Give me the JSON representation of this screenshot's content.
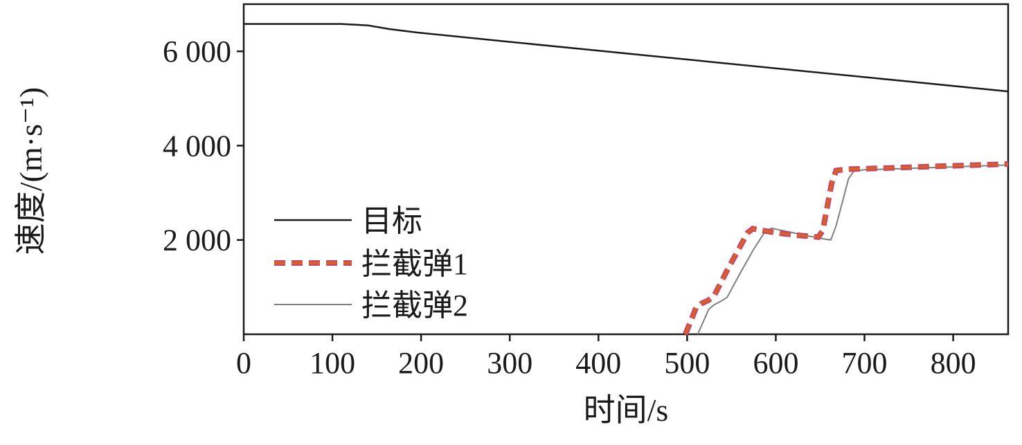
{
  "figure": {
    "kind": "scientific-line-plot",
    "background": "#ffffff",
    "axis_color": "#1a1a1a"
  },
  "chart_data": {
    "type": "line",
    "title": "",
    "xlabel": "时间/s",
    "ylabel": "速度/(m·s⁻¹)",
    "xlim": [
      0,
      862
    ],
    "ylim": [
      0,
      7000
    ],
    "grid": false,
    "legend_position": "inside-left-bottom",
    "xticks": [
      0,
      100,
      200,
      300,
      400,
      500,
      600,
      700,
      800
    ],
    "xtick_labels": [
      "0",
      "100",
      "200",
      "300",
      "400",
      "500",
      "600",
      "700",
      "800"
    ],
    "yticks": [
      2000,
      4000,
      6000
    ],
    "ytick_labels": [
      "2 000",
      "4 000",
      "6 000"
    ],
    "series": [
      {
        "name": "目标",
        "style": "solid",
        "colors": [
          "#1a1a1a"
        ],
        "width": 2.5,
        "points": [
          [
            0,
            6580
          ],
          [
            110,
            6580
          ],
          [
            140,
            6550
          ],
          [
            165,
            6470
          ],
          [
            195,
            6400
          ],
          [
            300,
            6200
          ],
          [
            450,
            5920
          ],
          [
            600,
            5640
          ],
          [
            750,
            5360
          ],
          [
            862,
            5150
          ]
        ]
      },
      {
        "name": "拦截弹1",
        "style": "dashed",
        "colors": [
          "#d95f2b",
          "#c5446a"
        ],
        "width": 6,
        "points": [
          [
            498,
            0
          ],
          [
            505,
            320
          ],
          [
            510,
            560
          ],
          [
            516,
            650
          ],
          [
            524,
            720
          ],
          [
            530,
            800
          ],
          [
            545,
            1350
          ],
          [
            558,
            1800
          ],
          [
            568,
            2150
          ],
          [
            574,
            2240
          ],
          [
            585,
            2200
          ],
          [
            605,
            2140
          ],
          [
            630,
            2090
          ],
          [
            648,
            2060
          ],
          [
            653,
            2200
          ],
          [
            658,
            2700
          ],
          [
            663,
            3200
          ],
          [
            668,
            3470
          ],
          [
            680,
            3500
          ],
          [
            720,
            3520
          ],
          [
            780,
            3560
          ],
          [
            862,
            3610
          ]
        ]
      },
      {
        "name": "拦截弹2",
        "style": "solid",
        "colors": [
          "#7d7f82"
        ],
        "width": 2,
        "points": [
          [
            512,
            0
          ],
          [
            519,
            300
          ],
          [
            524,
            520
          ],
          [
            530,
            620
          ],
          [
            538,
            700
          ],
          [
            545,
            780
          ],
          [
            560,
            1300
          ],
          [
            575,
            1800
          ],
          [
            588,
            2180
          ],
          [
            595,
            2250
          ],
          [
            610,
            2190
          ],
          [
            635,
            2090
          ],
          [
            655,
            2020
          ],
          [
            662,
            2000
          ],
          [
            668,
            2300
          ],
          [
            675,
            2800
          ],
          [
            682,
            3300
          ],
          [
            688,
            3460
          ],
          [
            700,
            3490
          ],
          [
            740,
            3510
          ],
          [
            800,
            3550
          ],
          [
            862,
            3590
          ]
        ]
      }
    ]
  }
}
